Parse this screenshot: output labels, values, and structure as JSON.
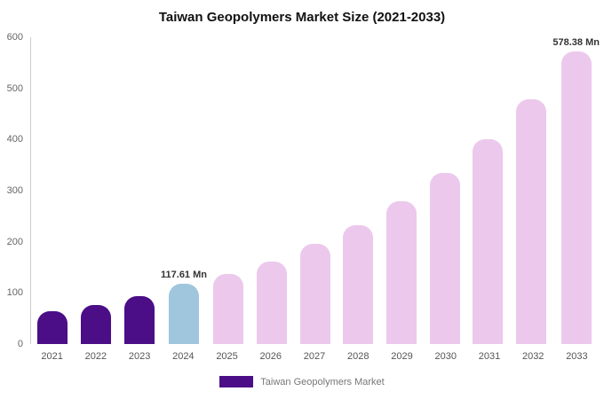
{
  "title": "Taiwan Geopolymers Market Size (2021-2033)",
  "legend": {
    "label": "Taiwan Geopolymers Market",
    "swatch_color": "#4b0e87"
  },
  "colors": {
    "dark_purple": "#4b0e87",
    "highlight_blue": "#9fc6dd",
    "light_pink": "#ecc9ec",
    "axis_line": "#cccccc"
  },
  "chart_data": {
    "type": "bar",
    "title": "Taiwan Geopolymers Market Size (2021-2033)",
    "xlabel": "",
    "ylabel": "",
    "categories": [
      "2021",
      "2022",
      "2023",
      "2024",
      "2025",
      "2026",
      "2027",
      "2028",
      "2029",
      "2030",
      "2031",
      "2032",
      "2033"
    ],
    "values": [
      64,
      77,
      94,
      117.61,
      137,
      161,
      196,
      233,
      279,
      334,
      400,
      478,
      578.38
    ],
    "bar_colors": [
      "#4b0e87",
      "#4b0e87",
      "#4b0e87",
      "#9fc6dd",
      "#ecc9ec",
      "#ecc9ec",
      "#ecc9ec",
      "#ecc9ec",
      "#ecc9ec",
      "#ecc9ec",
      "#ecc9ec",
      "#ecc9ec",
      "#ecc9ec"
    ],
    "data_labels": {
      "2024": "117.61 Mn",
      "2033": "578.38 Mn"
    },
    "ylim": [
      0,
      600
    ],
    "yticks": [
      0,
      100,
      200,
      300,
      400,
      500,
      600
    ],
    "grid": false,
    "legend_position": "bottom",
    "legend_entries": [
      "Taiwan Geopolymers Market"
    ],
    "unit": "Mn"
  }
}
